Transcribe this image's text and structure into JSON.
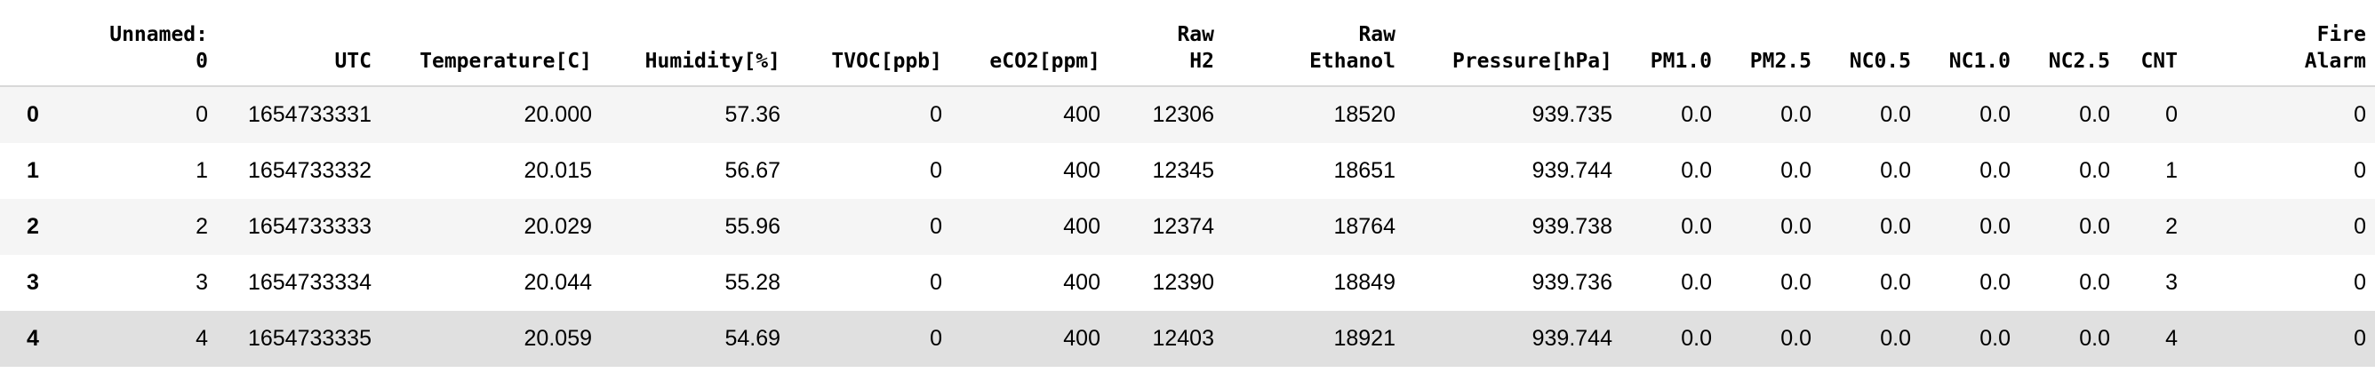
{
  "table": {
    "columns": [
      "",
      "Unnamed:\n0",
      "UTC",
      "Temperature[C]",
      "Humidity[%]",
      "TVOC[ppb]",
      "eCO2[ppm]",
      "Raw\nH2",
      "Raw\nEthanol",
      "Pressure[hPa]",
      "PM1.0",
      "PM2.5",
      "NC0.5",
      "NC1.0",
      "NC2.5",
      "CNT",
      "Fire\nAlarm"
    ],
    "rows": [
      [
        "0",
        "0",
        "1654733331",
        "20.000",
        "57.36",
        "0",
        "400",
        "12306",
        "18520",
        "939.735",
        "0.0",
        "0.0",
        "0.0",
        "0.0",
        "0.0",
        "0",
        "0"
      ],
      [
        "1",
        "1",
        "1654733332",
        "20.015",
        "56.67",
        "0",
        "400",
        "12345",
        "18651",
        "939.744",
        "0.0",
        "0.0",
        "0.0",
        "0.0",
        "0.0",
        "1",
        "0"
      ],
      [
        "2",
        "2",
        "1654733333",
        "20.029",
        "55.96",
        "0",
        "400",
        "12374",
        "18764",
        "939.738",
        "0.0",
        "0.0",
        "0.0",
        "0.0",
        "0.0",
        "2",
        "0"
      ],
      [
        "3",
        "3",
        "1654733334",
        "20.044",
        "55.28",
        "0",
        "400",
        "12390",
        "18849",
        "939.736",
        "0.0",
        "0.0",
        "0.0",
        "0.0",
        "0.0",
        "3",
        "0"
      ],
      [
        "4",
        "4",
        "1654733335",
        "20.059",
        "54.69",
        "0",
        "400",
        "12403",
        "18921",
        "939.744",
        "0.0",
        "0.0",
        "0.0",
        "0.0",
        "0.0",
        "4",
        "0"
      ]
    ]
  }
}
